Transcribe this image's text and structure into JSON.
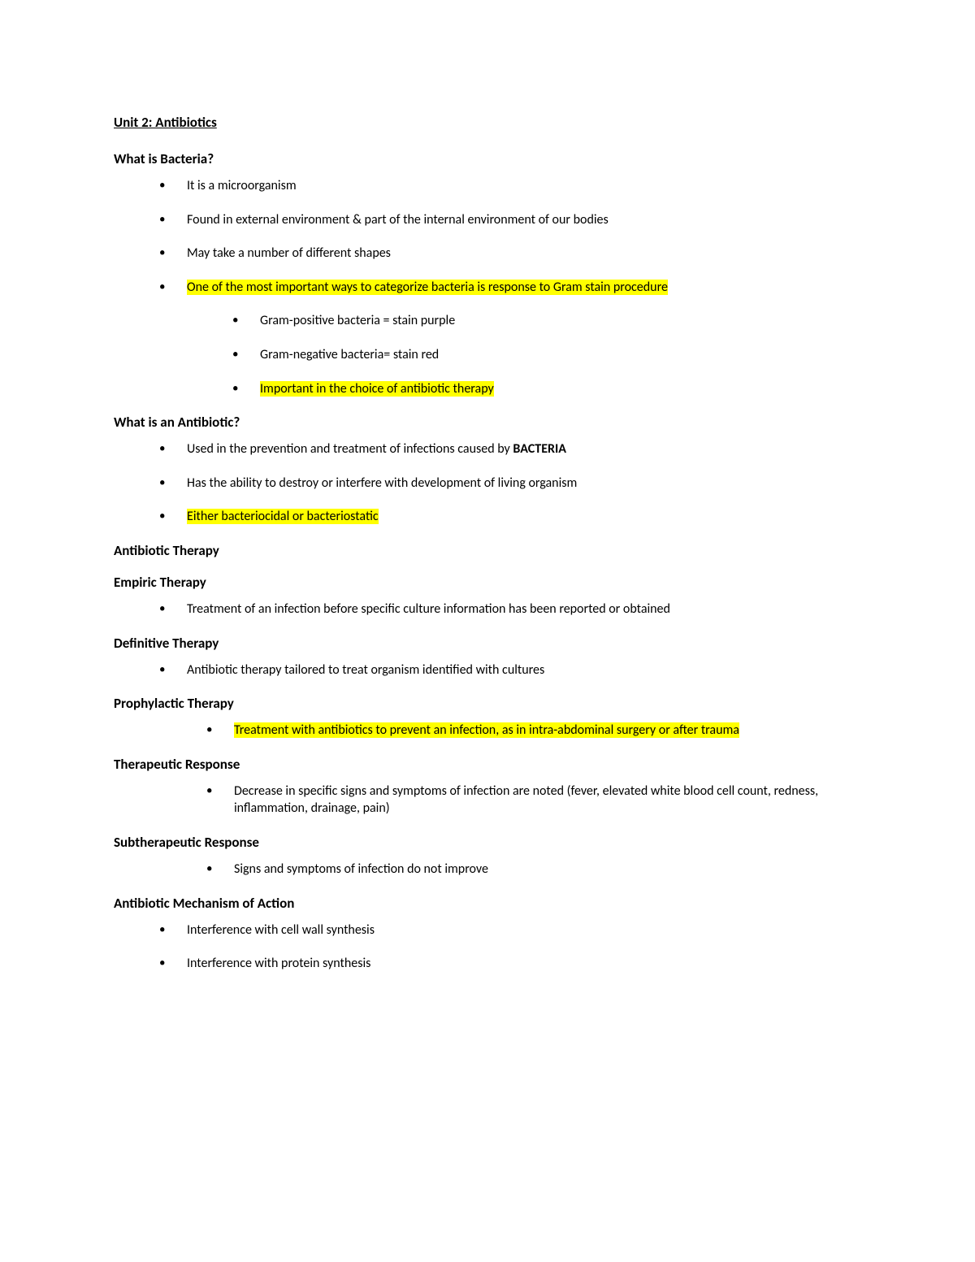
{
  "typography": {
    "font_family": "Calibri, Arial, sans-serif",
    "body_fontsize_pt": 12,
    "heading_fontsize_pt": 12.5,
    "title_fontsize_pt": 12.5,
    "line_height": 1.35,
    "text_color": "#000000",
    "highlight_color": "#ffff00",
    "background_color": "#ffffff"
  },
  "title": "Unit 2: Antibiotics",
  "sections": {
    "bacteria": {
      "heading": "What is Bacteria?",
      "items": {
        "i1": "It is a microorganism",
        "i2": "Found in external environment & part of the internal environment of our bodies",
        "i3": "May take a number of different shapes",
        "i4": "One of the most important ways to categorize bacteria is response to Gram stain procedure",
        "i4_sub": {
          "s1": "Gram-positive bacteria = stain purple",
          "s2": "Gram-negative bacteria= stain red",
          "s3": "Important in the choice of antibiotic therapy"
        }
      }
    },
    "antibiotic": {
      "heading": "What is an Antibiotic?",
      "items": {
        "i1_a": "Used in the prevention and treatment of infections caused by ",
        "i1_b": "BACTERIA",
        "i2": "Has the ability to destroy or interfere with development of living organism",
        "i3": "Either bacteriocidal or bacteriostatic"
      }
    },
    "therapy_heading": "Antibiotic Therapy",
    "empiric": {
      "heading": "Empiric Therapy",
      "item": "Treatment of an infection before specific culture information has been reported or obtained"
    },
    "definitive": {
      "heading": "Definitive Therapy",
      "item": "Antibiotic therapy tailored to treat organism identified with cultures"
    },
    "prophylactic": {
      "heading": "Prophylactic Therapy",
      "item": "Treatment with antibiotics to prevent an infection, as in intra-abdominal surgery or after trauma"
    },
    "therapeutic": {
      "heading": "Therapeutic Response",
      "item": "Decrease in specific signs and symptoms of infection are noted (fever, elevated white blood cell count, redness, inflammation, drainage, pain)"
    },
    "subtherapeutic": {
      "heading": "Subtherapeutic Response",
      "item": "Signs and symptoms of infection do not improve"
    },
    "mechanism": {
      "heading": "Antibiotic Mechanism of Action",
      "items": {
        "i1": "Interference with cell wall synthesis",
        "i2": "Interference with protein synthesis"
      }
    }
  }
}
